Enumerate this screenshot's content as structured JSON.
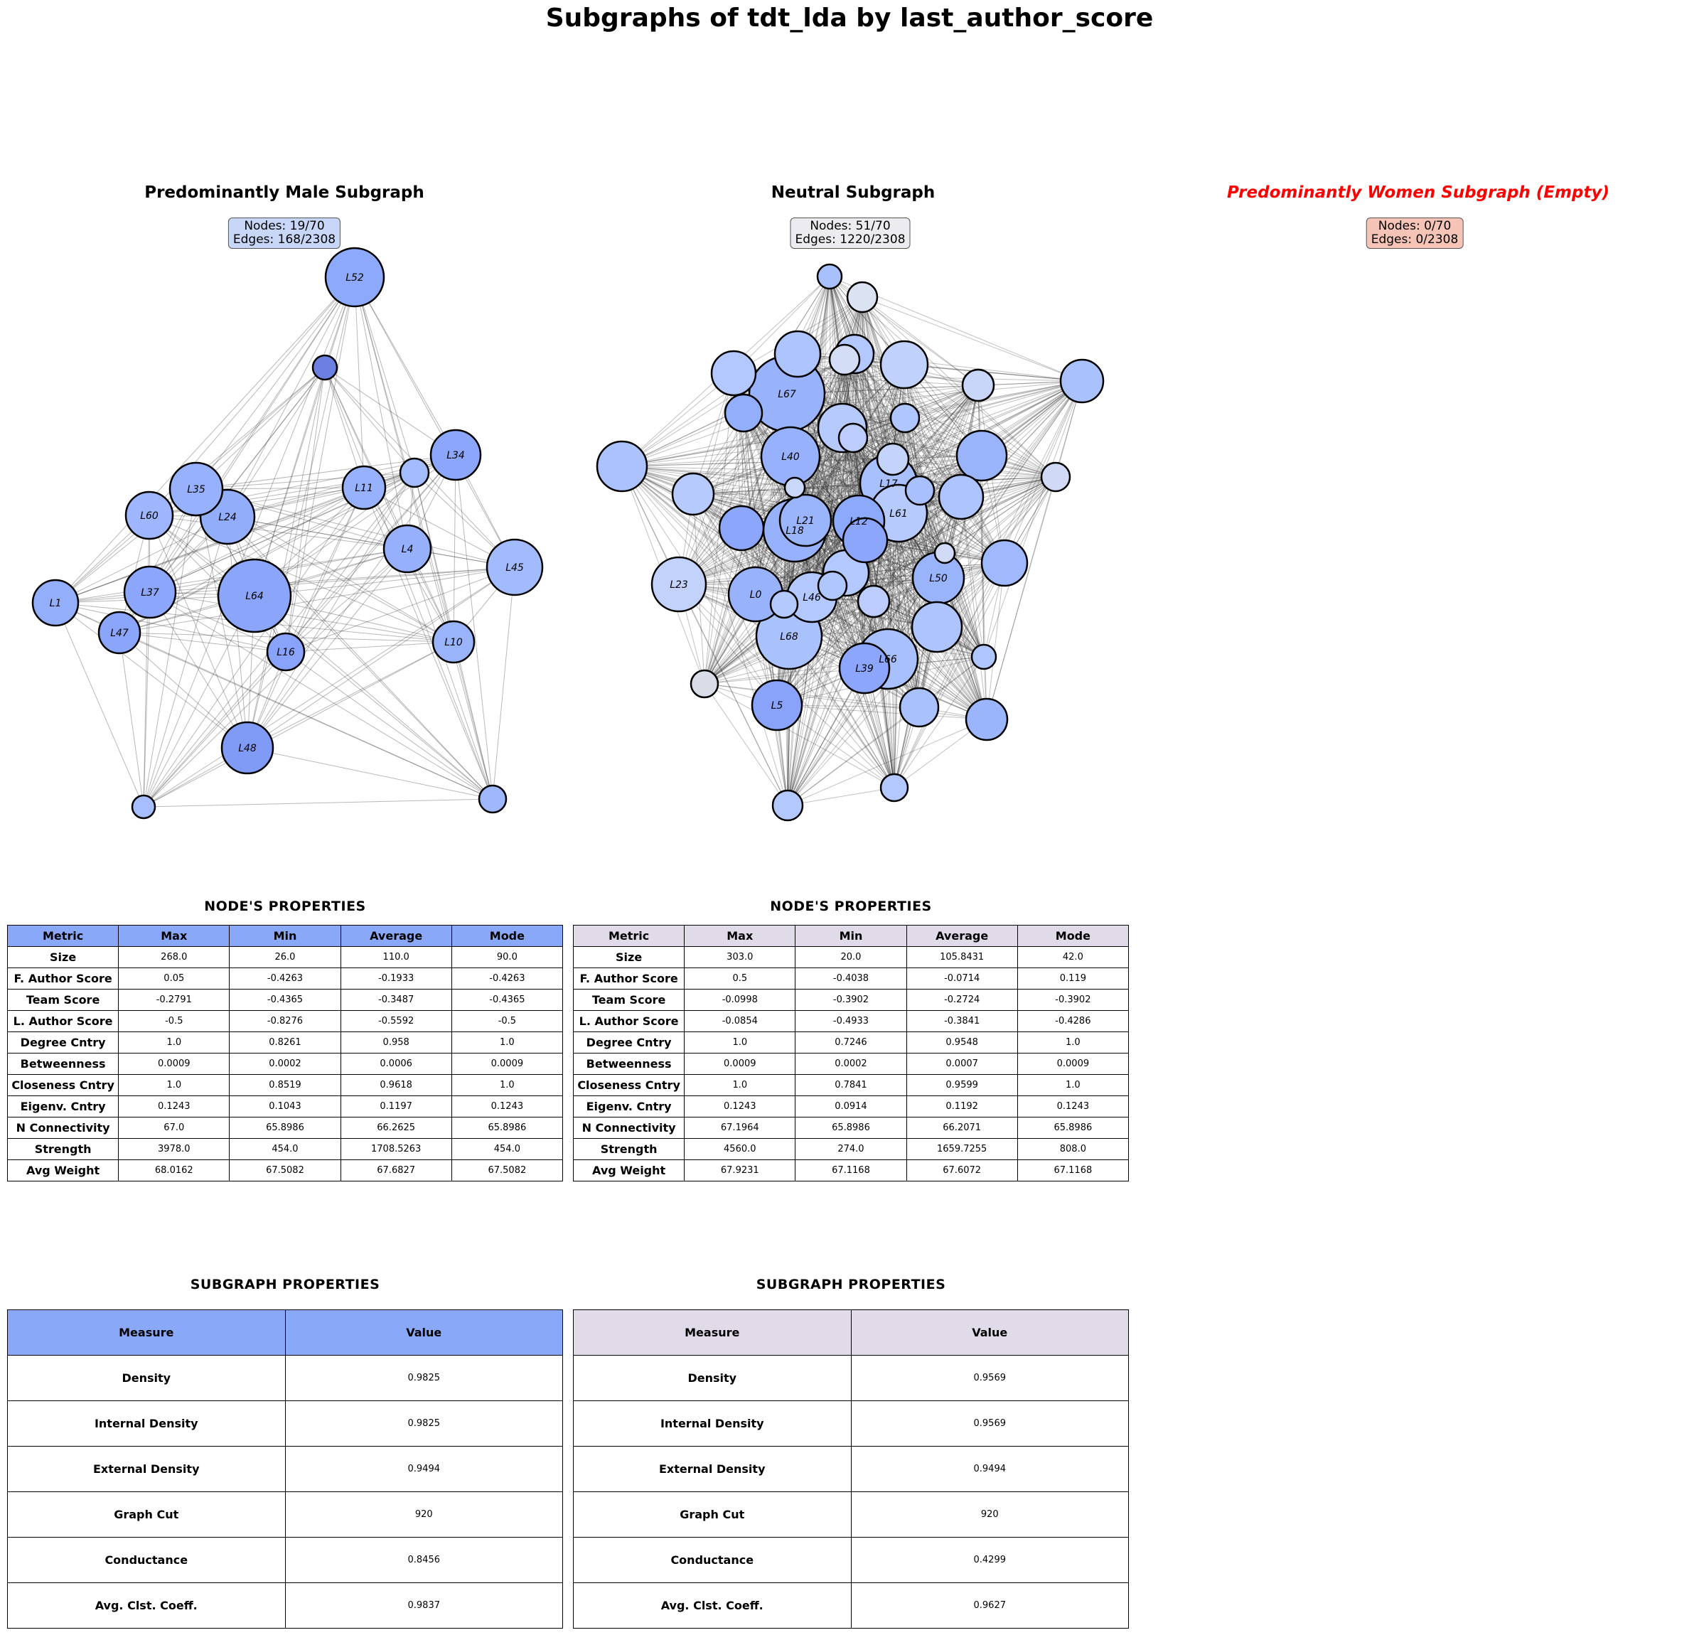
{
  "title": "Subgraphs of tdt_lda by last_author_score",
  "colors": {
    "male_header": "#8aa8f8",
    "neutral_header": "#e1dae8",
    "male_box": "#c8d6f8",
    "neutral_box": "#ececf0",
    "women_box": "#f6c4b6",
    "women_title": "#ff0000"
  },
  "panels": {
    "male": {
      "title": "Predominantly Male Subgraph",
      "nodes": "Nodes: 19/70",
      "edges": "Edges: 168/2308"
    },
    "neutral": {
      "title": "Neutral Subgraph",
      "nodes": "Nodes: 51/70",
      "edges": "Edges: 1220/2308"
    },
    "women": {
      "title": "Predominantly Women Subgraph (Empty)",
      "nodes": "Nodes: 0/70",
      "edges": "Edges: 0/2308"
    }
  },
  "graph_labels": {
    "male": [
      "L52",
      "L34",
      "L11",
      "L35",
      "L60",
      "L24",
      "L4",
      "L45",
      "L1",
      "L37",
      "L64",
      "L47",
      "L16",
      "L10",
      "L48"
    ],
    "neutral": [
      "L67",
      "L40",
      "L17",
      "L21",
      "L12",
      "L61",
      "L18",
      "L23",
      "L0",
      "L46",
      "L50",
      "L68",
      "L39",
      "L66",
      "L5"
    ]
  },
  "node_table_title": "NODE'S  PROPERTIES",
  "subgraph_table_title": "SUBGRAPH  PROPERTIES",
  "node_columns": [
    "Metric",
    "Max",
    "Min",
    "Average",
    "Mode"
  ],
  "sub_columns": [
    "Measure",
    "Value"
  ],
  "male_node_props": [
    [
      "Size",
      "268.0",
      "26.0",
      "110.0",
      "90.0"
    ],
    [
      "F. Author Score",
      "0.05",
      "-0.4263",
      "-0.1933",
      "-0.4263"
    ],
    [
      "Team Score",
      "-0.2791",
      "-0.4365",
      "-0.3487",
      "-0.4365"
    ],
    [
      "L. Author Score",
      "-0.5",
      "-0.8276",
      "-0.5592",
      "-0.5"
    ],
    [
      "Degree Cntry",
      "1.0",
      "0.8261",
      "0.958",
      "1.0"
    ],
    [
      "Betweenness",
      "0.0009",
      "0.0002",
      "0.0006",
      "0.0009"
    ],
    [
      "Closeness Cntry",
      "1.0",
      "0.8519",
      "0.9618",
      "1.0"
    ],
    [
      "Eigenv. Cntry",
      "0.1243",
      "0.1043",
      "0.1197",
      "0.1243"
    ],
    [
      "N Connectivity",
      "67.0",
      "65.8986",
      "66.2625",
      "65.8986"
    ],
    [
      "Strength",
      "3978.0",
      "454.0",
      "1708.5263",
      "454.0"
    ],
    [
      "Avg Weight",
      "68.0162",
      "67.5082",
      "67.6827",
      "67.5082"
    ]
  ],
  "neutral_node_props": [
    [
      "Size",
      "303.0",
      "20.0",
      "105.8431",
      "42.0"
    ],
    [
      "F. Author Score",
      "0.5",
      "-0.4038",
      "-0.0714",
      "0.119"
    ],
    [
      "Team Score",
      "-0.0998",
      "-0.3902",
      "-0.2724",
      "-0.3902"
    ],
    [
      "L. Author Score",
      "-0.0854",
      "-0.4933",
      "-0.3841",
      "-0.4286"
    ],
    [
      "Degree Cntry",
      "1.0",
      "0.7246",
      "0.9548",
      "1.0"
    ],
    [
      "Betweenness",
      "0.0009",
      "0.0002",
      "0.0007",
      "0.0009"
    ],
    [
      "Closeness Cntry",
      "1.0",
      "0.7841",
      "0.9599",
      "1.0"
    ],
    [
      "Eigenv. Cntry",
      "0.1243",
      "0.0914",
      "0.1192",
      "0.1243"
    ],
    [
      "N Connectivity",
      "67.1964",
      "65.8986",
      "66.2071",
      "65.8986"
    ],
    [
      "Strength",
      "4560.0",
      "274.0",
      "1659.7255",
      "808.0"
    ],
    [
      "Avg Weight",
      "67.9231",
      "67.1168",
      "67.6072",
      "67.1168"
    ]
  ],
  "male_sub_props": [
    [
      "Density",
      "0.9825"
    ],
    [
      "Internal Density",
      "0.9825"
    ],
    [
      "External Density",
      "0.9494"
    ],
    [
      "Graph Cut",
      "920"
    ],
    [
      "Conductance",
      "0.8456"
    ],
    [
      "Avg. Clst. Coeff.",
      "0.9837"
    ]
  ],
  "neutral_sub_props": [
    [
      "Density",
      "0.9569"
    ],
    [
      "Internal Density",
      "0.9569"
    ],
    [
      "External Density",
      "0.9494"
    ],
    [
      "Graph Cut",
      "920"
    ],
    [
      "Conductance",
      "0.4299"
    ],
    [
      "Avg. Clst. Coeff.",
      "0.9627"
    ]
  ]
}
